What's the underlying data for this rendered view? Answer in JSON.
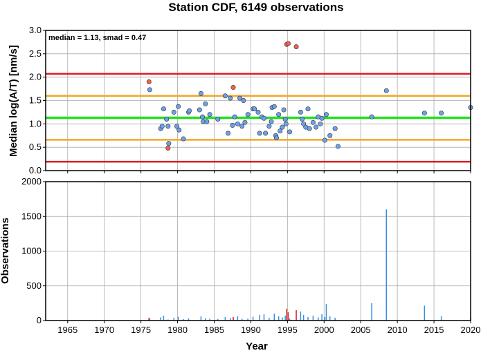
{
  "colors": {
    "grid": "#aaaaaa",
    "normal_point": "#6ea0ea",
    "outlier_point": "#f0604d",
    "median_line": "#22e022",
    "smad_line": "#f5a623",
    "limit_line": "#e31a1c",
    "normal_bar": "#3a8ee0",
    "outlier_bar": "#e31a1c"
  },
  "chart_data": [
    {
      "type": "scatter",
      "title": "Station CDF, 6149 observations",
      "ylabel": "Median log(A/T) [nm/s]",
      "annotation": "median = 1.13, smad = 0.47",
      "xlim": [
        1962,
        2020
      ],
      "ylim": [
        0,
        3
      ],
      "yticks": [
        "0.0",
        "0.5",
        "1.0",
        "1.5",
        "2.0",
        "2.5",
        "3.0"
      ],
      "xticks": [
        1965,
        1970,
        1975,
        1980,
        1985,
        1990,
        1995,
        2000,
        2005,
        2010,
        2015,
        2020
      ],
      "grid": true,
      "hlines": [
        {
          "y": 1.13,
          "kind": "median"
        },
        {
          "y": 1.6,
          "kind": "smad"
        },
        {
          "y": 0.66,
          "kind": "smad"
        },
        {
          "y": 2.07,
          "kind": "limit"
        },
        {
          "y": 0.19,
          "kind": "limit"
        }
      ],
      "series": [
        {
          "kind": "normal",
          "points": [
            [
              1976.2,
              1.73
            ],
            [
              1977.7,
              0.9
            ],
            [
              1977.9,
              0.95
            ],
            [
              1978.1,
              1.32
            ],
            [
              1978.5,
              1.1
            ],
            [
              1978.7,
              0.95
            ],
            [
              1978.8,
              0.58
            ],
            [
              1979.5,
              1.25
            ],
            [
              1979.9,
              0.95
            ],
            [
              1980.1,
              1.37
            ],
            [
              1980.2,
              0.87
            ],
            [
              1980.8,
              0.68
            ],
            [
              1981.5,
              1.25
            ],
            [
              1981.6,
              1.28
            ],
            [
              1983.0,
              1.3
            ],
            [
              1983.2,
              1.65
            ],
            [
              1983.4,
              1.15
            ],
            [
              1983.5,
              1.05
            ],
            [
              1983.8,
              1.43
            ],
            [
              1984.0,
              1.05
            ],
            [
              1984.4,
              1.2
            ],
            [
              1985.5,
              1.1
            ],
            [
              1986.5,
              1.6
            ],
            [
              1986.9,
              0.8
            ],
            [
              1987.2,
              1.55
            ],
            [
              1987.5,
              0.97
            ],
            [
              1987.8,
              1.15
            ],
            [
              1988.2,
              1.0
            ],
            [
              1988.5,
              1.55
            ],
            [
              1988.8,
              0.95
            ],
            [
              1989.0,
              1.5
            ],
            [
              1989.2,
              1.03
            ],
            [
              1989.6,
              1.2
            ],
            [
              1990.3,
              1.32
            ],
            [
              1990.5,
              1.32
            ],
            [
              1991.0,
              1.25
            ],
            [
              1991.2,
              0.8
            ],
            [
              1991.5,
              1.15
            ],
            [
              1991.8,
              1.12
            ],
            [
              1992.0,
              0.8
            ],
            [
              1992.5,
              0.95
            ],
            [
              1992.8,
              1.05
            ],
            [
              1992.9,
              1.35
            ],
            [
              1993.2,
              1.37
            ],
            [
              1993.4,
              0.75
            ],
            [
              1993.5,
              0.7
            ],
            [
              1993.8,
              1.2
            ],
            [
              1994.0,
              0.85
            ],
            [
              1994.3,
              0.93
            ],
            [
              1994.5,
              1.3
            ],
            [
              1994.7,
              1.1
            ],
            [
              1994.8,
              1.0
            ],
            [
              1995.3,
              0.83
            ],
            [
              1996.8,
              1.25
            ],
            [
              1997.0,
              1.1
            ],
            [
              1997.2,
              1.0
            ],
            [
              1997.5,
              0.93
            ],
            [
              1997.8,
              1.32
            ],
            [
              1998.0,
              0.9
            ],
            [
              1998.5,
              1.03
            ],
            [
              1998.9,
              0.93
            ],
            [
              1999.2,
              1.15
            ],
            [
              1999.5,
              1.0
            ],
            [
              1999.7,
              1.12
            ],
            [
              2000.1,
              0.65
            ],
            [
              2000.3,
              1.2
            ],
            [
              2000.8,
              0.75
            ],
            [
              2001.5,
              0.9
            ],
            [
              2001.9,
              0.52
            ],
            [
              2006.5,
              1.15
            ],
            [
              2008.5,
              1.71
            ],
            [
              2013.7,
              1.23
            ],
            [
              2016.0,
              1.23
            ],
            [
              2020.0,
              1.35
            ]
          ]
        },
        {
          "kind": "outlier",
          "points": [
            [
              1976.1,
              1.9
            ],
            [
              1978.7,
              0.48
            ],
            [
              1987.6,
              1.78
            ],
            [
              1994.9,
              2.7
            ],
            [
              1995.1,
              2.72
            ],
            [
              1996.2,
              2.65
            ]
          ]
        }
      ]
    },
    {
      "type": "bar",
      "ylabel": "Observations",
      "xlabel": "Year",
      "xlim": [
        1962,
        2020
      ],
      "ylim": [
        0,
        2000
      ],
      "yticks": [
        "0",
        "500",
        "1000",
        "1500",
        "2000"
      ],
      "xticks": [
        "1965",
        "1970",
        "1975",
        "1980",
        "1985",
        "1990",
        "1995",
        "2000",
        "2005",
        "2010",
        "2015",
        "2020"
      ],
      "grid": true,
      "series": [
        {
          "kind": "normal",
          "points": [
            [
              1976.2,
              30
            ],
            [
              1977.7,
              45
            ],
            [
              1978.1,
              70
            ],
            [
              1978.7,
              15
            ],
            [
              1979.5,
              40
            ],
            [
              1980.1,
              55
            ],
            [
              1980.8,
              20
            ],
            [
              1981.5,
              30
            ],
            [
              1983.2,
              60
            ],
            [
              1983.8,
              35
            ],
            [
              1984.4,
              25
            ],
            [
              1985.5,
              20
            ],
            [
              1986.5,
              50
            ],
            [
              1987.2,
              35
            ],
            [
              1988.2,
              60
            ],
            [
              1988.8,
              25
            ],
            [
              1989.6,
              30
            ],
            [
              1990.3,
              55
            ],
            [
              1991.2,
              80
            ],
            [
              1991.8,
              90
            ],
            [
              1992.5,
              40
            ],
            [
              1993.2,
              100
            ],
            [
              1993.8,
              60
            ],
            [
              1994.3,
              45
            ],
            [
              1994.7,
              70
            ],
            [
              1995.3,
              30
            ],
            [
              1996.8,
              130
            ],
            [
              1997.2,
              80
            ],
            [
              1997.8,
              50
            ],
            [
              1998.5,
              70
            ],
            [
              1999.2,
              45
            ],
            [
              1999.7,
              90
            ],
            [
              2000.1,
              50
            ],
            [
              2000.3,
              240
            ],
            [
              2000.8,
              60
            ],
            [
              2001.5,
              40
            ],
            [
              2006.5,
              250
            ],
            [
              2008.5,
              1600
            ],
            [
              2013.7,
              215
            ],
            [
              2016.0,
              60
            ],
            [
              2020.0,
              40
            ]
          ]
        },
        {
          "kind": "outlier",
          "points": [
            [
              1976.1,
              40
            ],
            [
              1987.6,
              50
            ],
            [
              1994.9,
              170
            ],
            [
              1995.1,
              120
            ],
            [
              1996.2,
              150
            ]
          ]
        }
      ]
    }
  ]
}
